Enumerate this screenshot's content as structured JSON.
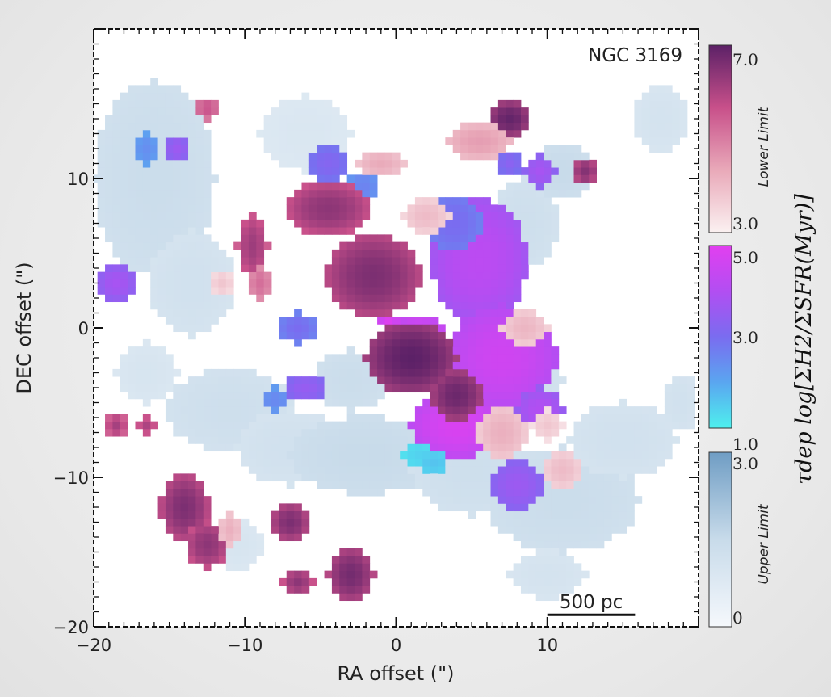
{
  "chart_data": {
    "type": "heatmap",
    "annotation": "NGC 3169",
    "xlabel": "RA offset (\")",
    "ylabel": "DEC offset (\")",
    "xlim": [
      -20,
      20
    ],
    "ylim": [
      -20,
      20
    ],
    "x_ticks": [
      -20,
      -10,
      0,
      10
    ],
    "x_tick_labels": [
      "−20",
      "−10",
      "0",
      "10"
    ],
    "y_ticks": [
      -20,
      -10,
      0,
      10
    ],
    "y_tick_labels": [
      "−20",
      "−10",
      "0",
      "10"
    ],
    "scale_bar": {
      "label": "500 pc",
      "x_start": 10,
      "x_end": 15.8,
      "y": -19.2
    },
    "colorbar_title": "τdep  log[ΣH2/ΣSFR(Myr)]",
    "colorbars": [
      {
        "name": "lower-limit",
        "side_label": "Lower Limit",
        "min": 3.0,
        "max": 7.0,
        "tick_labels": [
          "7.0",
          "3.0"
        ],
        "colors": [
          "#fbf1f1",
          "#e9a9b9",
          "#c8508a",
          "#5c2167"
        ]
      },
      {
        "name": "detection",
        "side_label": "",
        "min": 1.0,
        "max": 5.0,
        "tick_labels": [
          "5.0",
          "3.0",
          "1.0"
        ],
        "colors": [
          "#4ef0ee",
          "#5aa6f0",
          "#7a6cf0",
          "#b24ef2",
          "#e23ff0"
        ]
      },
      {
        "name": "upper-limit",
        "side_label": "Upper Limit",
        "min": 0,
        "max": 3.0,
        "tick_labels": [
          "3.0",
          "0"
        ],
        "colors": [
          "#f5f8fc",
          "#c8dbea",
          "#6f9dc4"
        ]
      }
    ],
    "regions_upper_limit": [
      {
        "cx": -16.0,
        "cy": 10.0,
        "rx": 4.0,
        "ry": 6.5,
        "value": 1.4
      },
      {
        "cx": -13.5,
        "cy": 3.0,
        "rx": 2.8,
        "ry": 3.5,
        "value": 1.2
      },
      {
        "cx": -16.5,
        "cy": -3.0,
        "rx": 2.0,
        "ry": 2.0,
        "value": 1.0
      },
      {
        "cx": -11.0,
        "cy": -5.5,
        "rx": 4.2,
        "ry": 2.8,
        "value": 1.3
      },
      {
        "cx": -7.0,
        "cy": -8.0,
        "rx": 3.5,
        "ry": 2.5,
        "value": 1.2
      },
      {
        "cx": -2.0,
        "cy": -8.5,
        "rx": 5.0,
        "ry": 2.6,
        "value": 1.5
      },
      {
        "cx": 5.0,
        "cy": -9.5,
        "rx": 4.0,
        "ry": 3.0,
        "value": 1.3
      },
      {
        "cx": 11.0,
        "cy": -11.5,
        "rx": 5.0,
        "ry": 3.5,
        "value": 1.4
      },
      {
        "cx": 15.0,
        "cy": -7.5,
        "rx": 3.5,
        "ry": 2.5,
        "value": 1.2
      },
      {
        "cx": 8.5,
        "cy": 7.0,
        "rx": 2.2,
        "ry": 3.0,
        "value": 1.3
      },
      {
        "cx": 11.0,
        "cy": 10.5,
        "rx": 2.0,
        "ry": 1.8,
        "value": 1.5
      },
      {
        "cx": 17.5,
        "cy": 14.0,
        "rx": 1.8,
        "ry": 2.2,
        "value": 1.1
      },
      {
        "cx": 18.8,
        "cy": -5.0,
        "rx": 1.2,
        "ry": 2.0,
        "value": 1.2
      },
      {
        "cx": -6.0,
        "cy": 13.0,
        "rx": 3.0,
        "ry": 2.5,
        "value": 0.9
      },
      {
        "cx": -3.0,
        "cy": -3.5,
        "rx": 2.5,
        "ry": 2.0,
        "value": 1.4
      },
      {
        "cx": 10.0,
        "cy": -16.5,
        "rx": 2.5,
        "ry": 1.6,
        "value": 1.1
      },
      {
        "cx": -10.5,
        "cy": -14.5,
        "rx": 1.6,
        "ry": 1.6,
        "value": 1.0
      },
      {
        "cx": 8.0,
        "cy": -3.5,
        "rx": 3.0,
        "ry": 2.5,
        "value": 1.3
      }
    ],
    "regions_detection": [
      {
        "cx": 5.5,
        "cy": 4.5,
        "rx": 3.2,
        "ry": 4.2,
        "value": 4.2
      },
      {
        "cx": 7.0,
        "cy": -2.0,
        "rx": 3.6,
        "ry": 3.5,
        "value": 4.6
      },
      {
        "cx": 4.0,
        "cy": -6.5,
        "rx": 3.0,
        "ry": 2.2,
        "value": 4.8
      },
      {
        "cx": 1.5,
        "cy": -1.0,
        "rx": 2.0,
        "ry": 1.8,
        "value": 4.9
      },
      {
        "cx": 8.0,
        "cy": -10.5,
        "rx": 1.8,
        "ry": 1.8,
        "value": 3.6
      },
      {
        "cx": 3.8,
        "cy": 7.0,
        "rx": 1.8,
        "ry": 2.0,
        "value": 3.0
      },
      {
        "cx": -4.5,
        "cy": 11.0,
        "rx": 1.3,
        "ry": 1.2,
        "value": 3.2
      },
      {
        "cx": -2.2,
        "cy": 9.5,
        "rx": 1.0,
        "ry": 1.0,
        "value": 2.6
      },
      {
        "cx": -16.5,
        "cy": 12.0,
        "rx": 0.8,
        "ry": 1.0,
        "value": 2.4
      },
      {
        "cx": -14.5,
        "cy": 12.0,
        "rx": 0.8,
        "ry": 0.9,
        "value": 3.6
      },
      {
        "cx": -18.5,
        "cy": 3.0,
        "rx": 1.2,
        "ry": 1.2,
        "value": 3.8
      },
      {
        "cx": -6.0,
        "cy": -4.0,
        "rx": 1.4,
        "ry": 0.9,
        "value": 3.5
      },
      {
        "cx": -8.0,
        "cy": -4.8,
        "rx": 1.0,
        "ry": 0.8,
        "value": 2.5
      },
      {
        "cx": 1.5,
        "cy": -8.5,
        "rx": 1.0,
        "ry": 0.8,
        "value": 1.4
      },
      {
        "cx": 2.5,
        "cy": -9.0,
        "rx": 0.9,
        "ry": 0.7,
        "value": 1.6
      },
      {
        "cx": 9.5,
        "cy": 10.5,
        "rx": 1.0,
        "ry": 1.0,
        "value": 3.8
      },
      {
        "cx": 7.5,
        "cy": 11.0,
        "rx": 0.8,
        "ry": 0.8,
        "value": 3.3
      },
      {
        "cx": -0.5,
        "cy": 0.5,
        "rx": 0.7,
        "ry": 0.7,
        "value": 4.9
      },
      {
        "cx": 9.5,
        "cy": -5.5,
        "rx": 1.5,
        "ry": 1.5,
        "value": 4.0
      },
      {
        "cx": -6.5,
        "cy": 0.0,
        "rx": 1.2,
        "ry": 1.0,
        "value": 3.0
      }
    ],
    "regions_lower_limit": [
      {
        "cx": -1.5,
        "cy": 3.5,
        "rx": 3.2,
        "ry": 2.8,
        "value": 6.6
      },
      {
        "cx": 1.0,
        "cy": -2.0,
        "rx": 3.0,
        "ry": 2.4,
        "value": 7.0
      },
      {
        "cx": 4.0,
        "cy": -4.5,
        "rx": 1.8,
        "ry": 1.8,
        "value": 6.8
      },
      {
        "cx": -4.5,
        "cy": 8.0,
        "rx": 2.8,
        "ry": 1.8,
        "value": 6.4
      },
      {
        "cx": -9.5,
        "cy": 5.5,
        "rx": 1.0,
        "ry": 2.2,
        "value": 6.2
      },
      {
        "cx": -9.0,
        "cy": 3.0,
        "rx": 0.8,
        "ry": 1.2,
        "value": 5.2
      },
      {
        "cx": -14.0,
        "cy": -12.0,
        "rx": 1.6,
        "ry": 2.2,
        "value": 6.6
      },
      {
        "cx": -12.5,
        "cy": -14.5,
        "rx": 1.4,
        "ry": 1.6,
        "value": 6.4
      },
      {
        "cx": -7.0,
        "cy": -13.0,
        "rx": 1.3,
        "ry": 1.3,
        "value": 6.6
      },
      {
        "cx": -3.0,
        "cy": -16.5,
        "rx": 1.5,
        "ry": 1.8,
        "value": 6.7
      },
      {
        "cx": -6.5,
        "cy": -17.0,
        "rx": 1.0,
        "ry": 0.9,
        "value": 6.4
      },
      {
        "cx": -18.5,
        "cy": -6.5,
        "rx": 0.7,
        "ry": 0.8,
        "value": 6.1
      },
      {
        "cx": -16.5,
        "cy": -6.5,
        "rx": 0.7,
        "ry": 0.7,
        "value": 6.0
      },
      {
        "cx": 7.5,
        "cy": 14.0,
        "rx": 1.4,
        "ry": 1.2,
        "value": 6.9
      },
      {
        "cx": -12.5,
        "cy": 14.7,
        "rx": 0.8,
        "ry": 0.8,
        "value": 5.6
      },
      {
        "cx": 5.5,
        "cy": 12.5,
        "rx": 2.2,
        "ry": 1.2,
        "value": 4.5
      },
      {
        "cx": 2.0,
        "cy": 7.5,
        "rx": 1.5,
        "ry": 1.2,
        "value": 4.0
      },
      {
        "cx": -1.0,
        "cy": 11.0,
        "rx": 1.6,
        "ry": 0.9,
        "value": 4.3
      },
      {
        "cx": 8.5,
        "cy": 0.0,
        "rx": 1.5,
        "ry": 1.2,
        "value": 4.1
      },
      {
        "cx": 7.0,
        "cy": -7.0,
        "rx": 1.6,
        "ry": 1.8,
        "value": 4.2
      },
      {
        "cx": 11.0,
        "cy": -9.5,
        "rx": 1.3,
        "ry": 1.3,
        "value": 4.0
      },
      {
        "cx": 10.0,
        "cy": -6.5,
        "rx": 1.0,
        "ry": 1.0,
        "value": 3.8
      },
      {
        "cx": -11.0,
        "cy": -13.5,
        "rx": 0.8,
        "ry": 1.2,
        "value": 4.2
      },
      {
        "cx": -11.5,
        "cy": 3.0,
        "rx": 0.8,
        "ry": 0.8,
        "value": 3.8
      },
      {
        "cx": 12.5,
        "cy": 10.5,
        "rx": 0.8,
        "ry": 0.9,
        "value": 6.5
      }
    ]
  }
}
